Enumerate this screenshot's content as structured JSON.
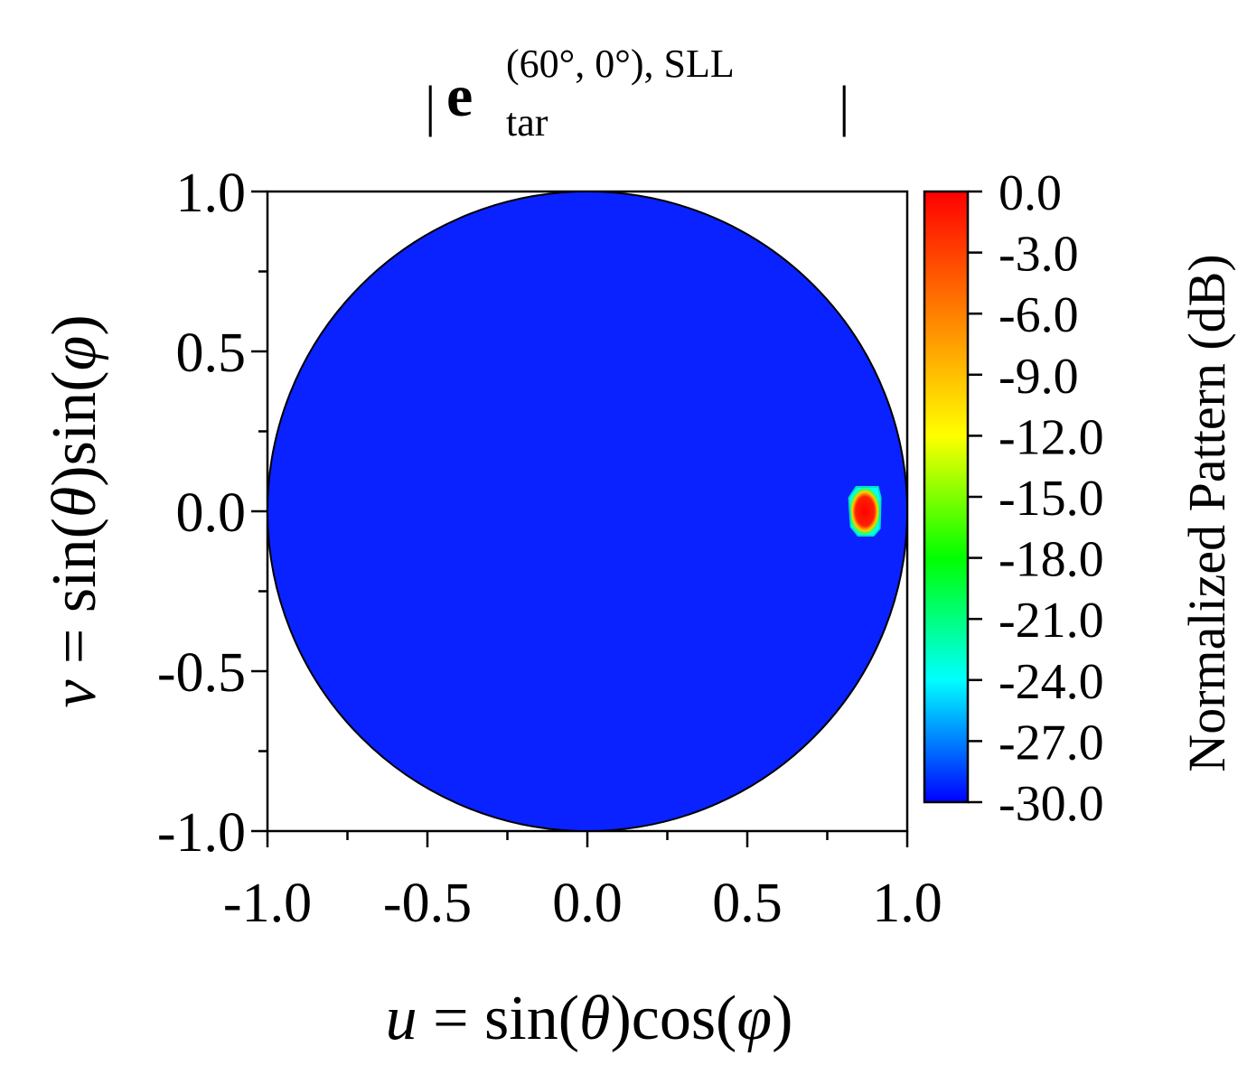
{
  "chart_data": {
    "type": "heatmap",
    "title": {
      "bar_left": "|",
      "main": "e",
      "superscript": "(60°, 0°), SLL",
      "subscript": "tar",
      "bar_right": "|"
    },
    "xlabel": {
      "var": "u",
      "eq": " = sin(",
      "theta": "θ",
      "mid": ")cos(",
      "phi": "φ",
      "end": ")"
    },
    "ylabel": {
      "var": "v",
      "eq": " = sin(",
      "theta": "θ",
      "mid": ")sin(",
      "phi": "φ",
      "end": ")"
    },
    "xlim": [
      -1.0,
      1.0
    ],
    "ylim": [
      -1.0,
      1.0
    ],
    "x_ticks": [
      "-1.0",
      "-0.5",
      "0.0",
      "0.5",
      "1.0"
    ],
    "y_ticks": [
      "1.0",
      "0.5",
      "0.0",
      "-0.5",
      "-1.0"
    ],
    "region": "unit circle u² + v² ≤ 1",
    "background_level_db": -30.0,
    "main_beam": {
      "u": 0.866,
      "v": 0.0,
      "peak_db": 0.0
    },
    "colorbar": {
      "label": "Normalized Pattern (dB)",
      "range": [
        -30.0,
        0.0
      ],
      "ticks": [
        "0.0",
        "-3.0",
        "-6.0",
        "-9.0",
        "-12.0",
        "-15.0",
        "-18.0",
        "-21.0",
        "-24.0",
        "-27.0",
        "-30.0"
      ],
      "colors": [
        "#ff0000",
        "#ff8000",
        "#ffff00",
        "#00ff00",
        "#00ffff",
        "#0000ff"
      ]
    }
  }
}
